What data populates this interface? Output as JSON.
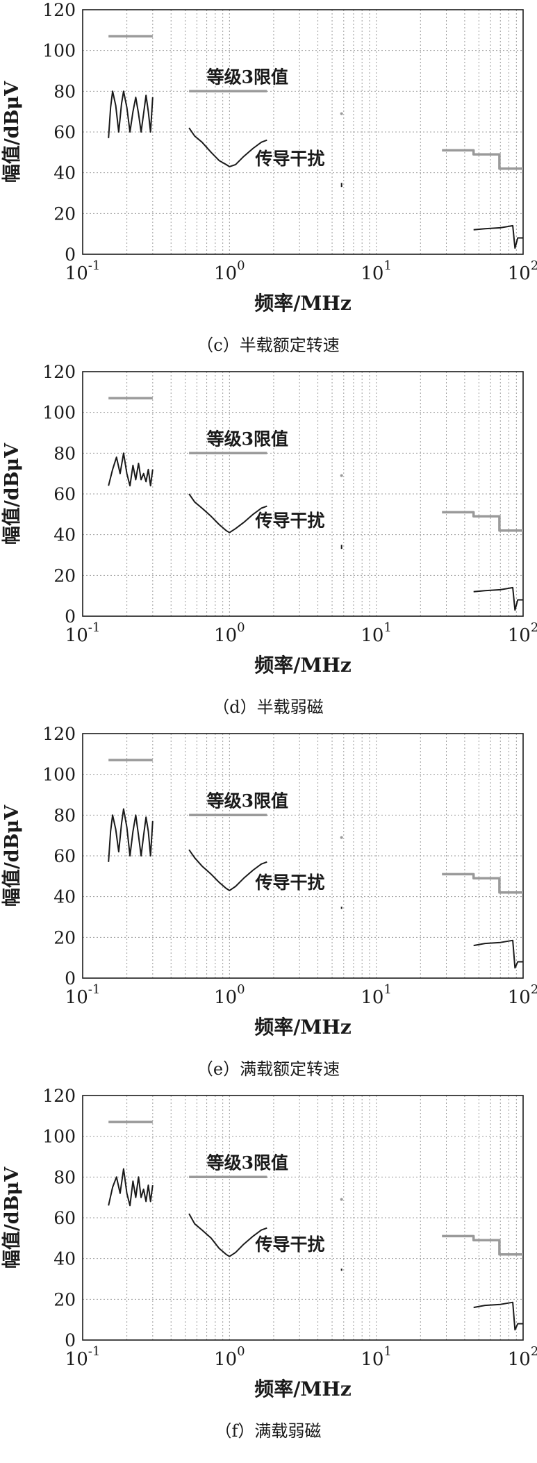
{
  "chart_data": [
    {
      "type": "line",
      "caption": "（c）半载额定转速",
      "xlabel": "频率/MHz",
      "ylabel": "幅值/dBμV",
      "xscale": "log",
      "xlim": [
        0.1,
        100
      ],
      "ylim": [
        0,
        120
      ],
      "yticks": [
        0,
        20,
        40,
        60,
        80,
        100,
        120
      ],
      "xticks": [
        {
          "base": "10",
          "exp": "-1"
        },
        {
          "base": "10",
          "exp": "0"
        },
        {
          "base": "10",
          "exp": "1"
        },
        {
          "base": "10",
          "exp": "2"
        }
      ],
      "grid": true,
      "annotations": [
        {
          "text": "等级3限值",
          "x": 0.7,
          "y": 84
        },
        {
          "text": "传导干扰",
          "x": 1.5,
          "y": 44
        }
      ],
      "series": [
        {
          "role": "limit",
          "color": "#9a9a9a",
          "points": [
            [
              0.15,
              107
            ],
            [
              0.3,
              107
            ],
            null,
            [
              0.53,
              80
            ],
            [
              1.8,
              80
            ],
            null,
            [
              5.8,
              69
            ],
            [
              5.8,
              69
            ],
            null,
            [
              28,
              51
            ],
            [
              46,
              51
            ],
            [
              46,
              49
            ],
            [
              69,
              49
            ],
            [
              69,
              42
            ],
            [
              100,
              42
            ]
          ]
        },
        {
          "role": "emission",
          "color": "#1a1a1a",
          "points": [
            [
              0.15,
              57
            ],
            [
              0.155,
              72
            ],
            [
              0.16,
              80
            ],
            [
              0.168,
              73
            ],
            [
              0.176,
              60
            ],
            [
              0.184,
              74
            ],
            [
              0.19,
              80
            ],
            [
              0.2,
              72
            ],
            [
              0.21,
              60
            ],
            [
              0.22,
              70
            ],
            [
              0.23,
              77
            ],
            [
              0.24,
              69
            ],
            [
              0.25,
              60
            ],
            [
              0.26,
              69
            ],
            [
              0.27,
              78
            ],
            [
              0.28,
              70
            ],
            [
              0.29,
              60
            ],
            [
              0.3,
              77
            ],
            null,
            [
              0.53,
              62
            ],
            [
              0.58,
              58
            ],
            [
              0.65,
              55
            ],
            [
              0.75,
              50
            ],
            [
              0.85,
              46
            ],
            [
              0.95,
              44
            ],
            [
              1.0,
              43
            ],
            [
              1.1,
              44
            ],
            [
              1.25,
              48
            ],
            [
              1.45,
              52
            ],
            [
              1.65,
              55
            ],
            [
              1.8,
              56
            ],
            null,
            [
              5.8,
              35
            ],
            [
              5.8,
              33
            ],
            null,
            [
              46,
              12
            ],
            [
              55,
              12.5
            ],
            [
              70,
              13
            ],
            [
              85,
              14
            ],
            [
              88,
              3
            ],
            [
              92,
              8
            ],
            [
              100,
              8
            ]
          ]
        }
      ]
    },
    {
      "type": "line",
      "caption": "（d）半载弱磁",
      "xlabel": "频率/MHz",
      "ylabel": "幅值/dBμV",
      "xscale": "log",
      "xlim": [
        0.1,
        100
      ],
      "ylim": [
        0,
        120
      ],
      "yticks": [
        0,
        20,
        40,
        60,
        80,
        100,
        120
      ],
      "xticks": [
        {
          "base": "10",
          "exp": "-1"
        },
        {
          "base": "10",
          "exp": "0"
        },
        {
          "base": "10",
          "exp": "1"
        },
        {
          "base": "10",
          "exp": "2"
        }
      ],
      "grid": true,
      "annotations": [
        {
          "text": "等级3限值",
          "x": 0.7,
          "y": 84
        },
        {
          "text": "传导干扰",
          "x": 1.5,
          "y": 44
        }
      ],
      "series": [
        {
          "role": "limit",
          "color": "#9a9a9a",
          "points": [
            [
              0.15,
              107
            ],
            [
              0.3,
              107
            ],
            null,
            [
              0.53,
              80
            ],
            [
              1.8,
              80
            ],
            null,
            [
              5.8,
              69
            ],
            [
              5.8,
              69
            ],
            null,
            [
              28,
              51
            ],
            [
              46,
              51
            ],
            [
              46,
              49
            ],
            [
              69,
              49
            ],
            [
              69,
              42
            ],
            [
              100,
              42
            ]
          ]
        },
        {
          "role": "emission",
          "color": "#1a1a1a",
          "points": [
            [
              0.15,
              64
            ],
            [
              0.16,
              72
            ],
            [
              0.17,
              78
            ],
            [
              0.18,
              70
            ],
            [
              0.19,
              80
            ],
            [
              0.2,
              70
            ],
            [
              0.21,
              64
            ],
            [
              0.22,
              74
            ],
            [
              0.23,
              67
            ],
            [
              0.24,
              75
            ],
            [
              0.25,
              67
            ],
            [
              0.26,
              70
            ],
            [
              0.27,
              66
            ],
            [
              0.28,
              72
            ],
            [
              0.29,
              64
            ],
            [
              0.3,
              72
            ],
            null,
            [
              0.53,
              60
            ],
            [
              0.58,
              56
            ],
            [
              0.65,
              53
            ],
            [
              0.75,
              49
            ],
            [
              0.85,
              45
            ],
            [
              0.95,
              42
            ],
            [
              1.0,
              41
            ],
            [
              1.1,
              43
            ],
            [
              1.25,
              46
            ],
            [
              1.45,
              50
            ],
            [
              1.65,
              53
            ],
            [
              1.8,
              54
            ],
            null,
            [
              5.8,
              35
            ],
            [
              5.8,
              33
            ],
            null,
            [
              46,
              12
            ],
            [
              55,
              12.5
            ],
            [
              70,
              13
            ],
            [
              85,
              14
            ],
            [
              88,
              3
            ],
            [
              92,
              8
            ],
            [
              100,
              8
            ]
          ]
        }
      ]
    },
    {
      "type": "line",
      "caption": "（e）满载额定转速",
      "xlabel": "频率/MHz",
      "ylabel": "幅值/dBμV",
      "xscale": "log",
      "xlim": [
        0.1,
        100
      ],
      "ylim": [
        0,
        120
      ],
      "yticks": [
        0,
        20,
        40,
        60,
        80,
        100,
        120
      ],
      "xticks": [
        {
          "base": "10",
          "exp": "-1"
        },
        {
          "base": "10",
          "exp": "0"
        },
        {
          "base": "10",
          "exp": "1"
        },
        {
          "base": "10",
          "exp": "2"
        }
      ],
      "grid": true,
      "annotations": [
        {
          "text": "等级3限值",
          "x": 0.7,
          "y": 84
        },
        {
          "text": "传导干扰",
          "x": 1.5,
          "y": 44
        }
      ],
      "series": [
        {
          "role": "limit",
          "color": "#9a9a9a",
          "points": [
            [
              0.15,
              107
            ],
            [
              0.3,
              107
            ],
            null,
            [
              0.53,
              80
            ],
            [
              1.8,
              80
            ],
            null,
            [
              5.8,
              69
            ],
            [
              5.8,
              69
            ],
            null,
            [
              28,
              51
            ],
            [
              46,
              51
            ],
            [
              46,
              49
            ],
            [
              69,
              49
            ],
            [
              69,
              42
            ],
            [
              100,
              42
            ]
          ]
        },
        {
          "role": "emission",
          "color": "#1a1a1a",
          "points": [
            [
              0.15,
              57
            ],
            [
              0.155,
              72
            ],
            [
              0.16,
              80
            ],
            [
              0.168,
              73
            ],
            [
              0.176,
              62
            ],
            [
              0.184,
              76
            ],
            [
              0.19,
              83
            ],
            [
              0.2,
              74
            ],
            [
              0.21,
              60
            ],
            [
              0.22,
              72
            ],
            [
              0.23,
              80
            ],
            [
              0.24,
              70
            ],
            [
              0.25,
              60
            ],
            [
              0.26,
              70
            ],
            [
              0.27,
              79
            ],
            [
              0.28,
              72
            ],
            [
              0.29,
              60
            ],
            [
              0.3,
              77
            ],
            null,
            [
              0.53,
              63
            ],
            [
              0.58,
              59
            ],
            [
              0.65,
              55
            ],
            [
              0.75,
              51
            ],
            [
              0.85,
              47
            ],
            [
              0.95,
              44
            ],
            [
              1.0,
              43
            ],
            [
              1.1,
              45
            ],
            [
              1.25,
              49
            ],
            [
              1.45,
              53
            ],
            [
              1.65,
              56
            ],
            [
              1.8,
              57
            ],
            null,
            [
              5.8,
              35
            ],
            [
              5.8,
              34
            ],
            null,
            [
              46,
              16
            ],
            [
              55,
              17
            ],
            [
              70,
              17.5
            ],
            [
              85,
              18.5
            ],
            [
              88,
              5
            ],
            [
              92,
              8
            ],
            [
              100,
              8
            ]
          ]
        }
      ]
    },
    {
      "type": "line",
      "caption": "（f）满载弱磁",
      "xlabel": "频率/MHz",
      "ylabel": "幅值/dBμV",
      "xscale": "log",
      "xlim": [
        0.1,
        100
      ],
      "ylim": [
        0,
        120
      ],
      "yticks": [
        0,
        20,
        40,
        60,
        80,
        100,
        120
      ],
      "xticks": [
        {
          "base": "10",
          "exp": "-1"
        },
        {
          "base": "10",
          "exp": "0"
        },
        {
          "base": "10",
          "exp": "1"
        },
        {
          "base": "10",
          "exp": "2"
        }
      ],
      "grid": true,
      "annotations": [
        {
          "text": "等级3限值",
          "x": 0.7,
          "y": 84
        },
        {
          "text": "传导干扰",
          "x": 1.5,
          "y": 44
        }
      ],
      "series": [
        {
          "role": "limit",
          "color": "#9a9a9a",
          "points": [
            [
              0.15,
              107
            ],
            [
              0.3,
              107
            ],
            null,
            [
              0.53,
              80
            ],
            [
              1.8,
              80
            ],
            null,
            [
              5.8,
              69
            ],
            [
              5.8,
              69
            ],
            null,
            [
              28,
              51
            ],
            [
              46,
              51
            ],
            [
              46,
              49
            ],
            [
              69,
              49
            ],
            [
              69,
              42
            ],
            [
              100,
              42
            ]
          ]
        },
        {
          "role": "emission",
          "color": "#1a1a1a",
          "points": [
            [
              0.15,
              66
            ],
            [
              0.16,
              75
            ],
            [
              0.17,
              80
            ],
            [
              0.18,
              72
            ],
            [
              0.19,
              84
            ],
            [
              0.2,
              72
            ],
            [
              0.21,
              66
            ],
            [
              0.22,
              78
            ],
            [
              0.23,
              70
            ],
            [
              0.24,
              80
            ],
            [
              0.25,
              70
            ],
            [
              0.26,
              74
            ],
            [
              0.27,
              68
            ],
            [
              0.28,
              76
            ],
            [
              0.29,
              68
            ],
            [
              0.3,
              76
            ],
            null,
            [
              0.53,
              62
            ],
            [
              0.58,
              57
            ],
            [
              0.65,
              54
            ],
            [
              0.75,
              50
            ],
            [
              0.85,
              45
            ],
            [
              0.95,
              42
            ],
            [
              1.0,
              41
            ],
            [
              1.1,
              43
            ],
            [
              1.25,
              47
            ],
            [
              1.45,
              51
            ],
            [
              1.65,
              54
            ],
            [
              1.8,
              55
            ],
            null,
            [
              5.8,
              35
            ],
            [
              5.8,
              34
            ],
            null,
            [
              46,
              16
            ],
            [
              55,
              17
            ],
            [
              70,
              17.5
            ],
            [
              85,
              18.5
            ],
            [
              88,
              5
            ],
            [
              92,
              8
            ],
            [
              100,
              8
            ]
          ]
        }
      ]
    }
  ]
}
